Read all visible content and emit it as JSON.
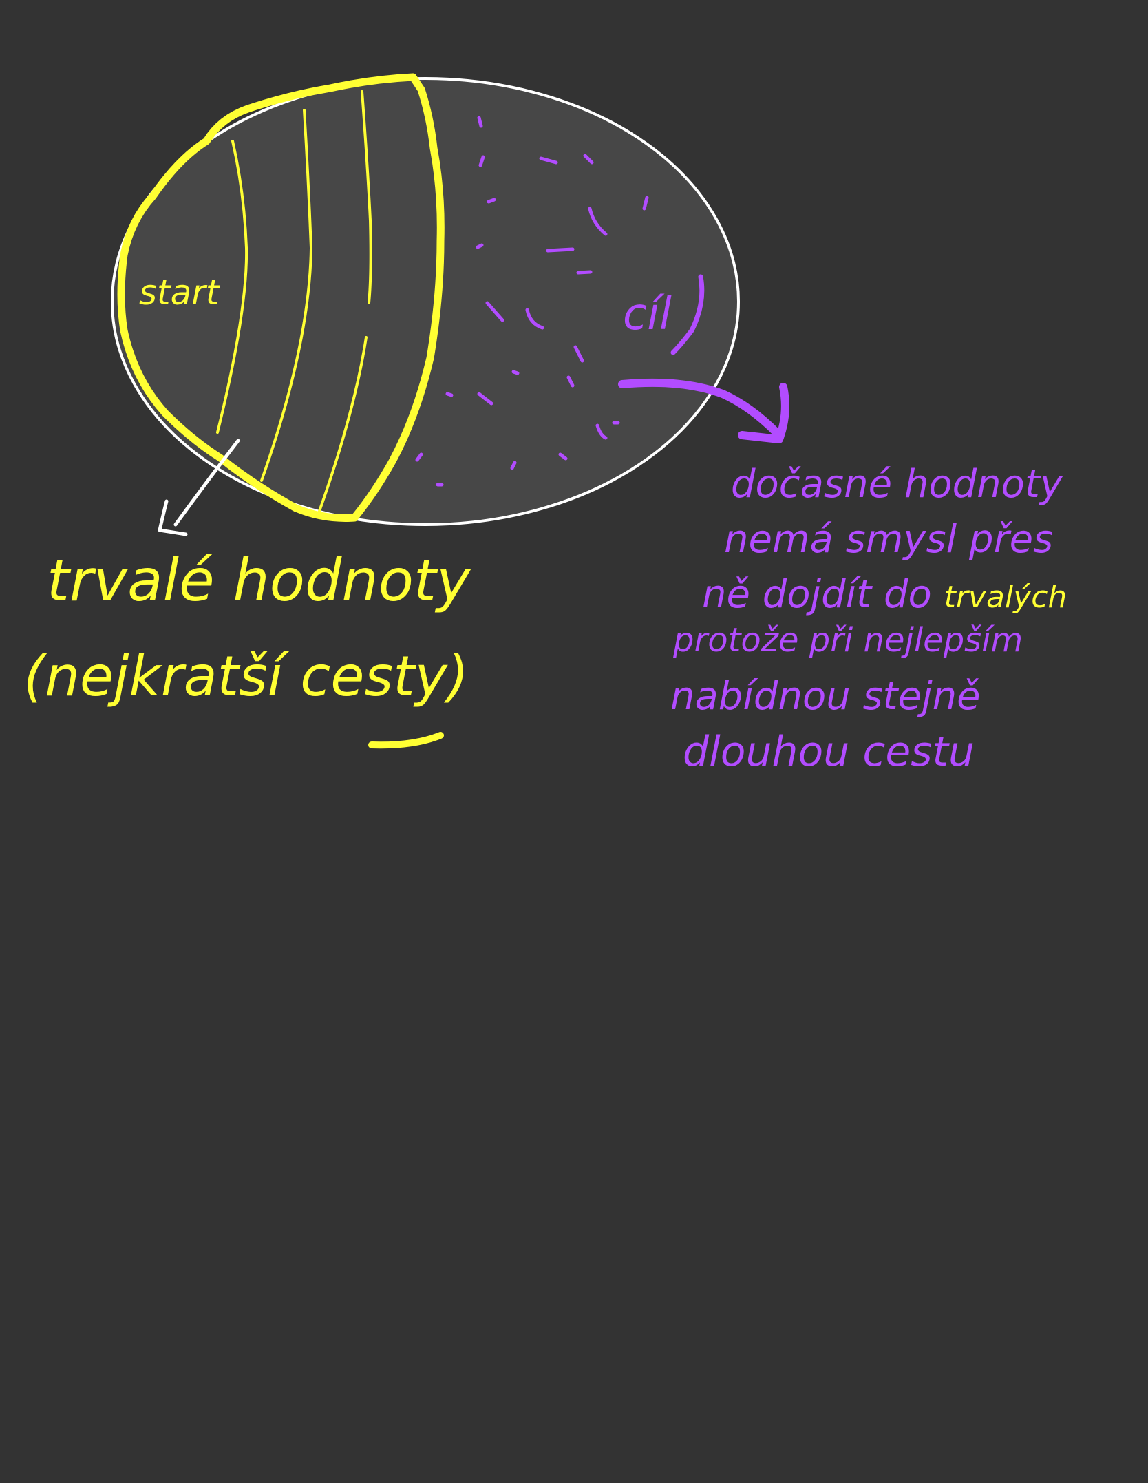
{
  "colors": {
    "background": "#333333",
    "region_fill": "#474747",
    "region_outline": "#ffffff",
    "permanent": "#ffff33",
    "temporary": "#b24cff",
    "pointer_arrow": "#ffffff"
  },
  "labels": {
    "start": "start",
    "goal": "cíl"
  },
  "permanent_note": {
    "line1": "trvalé hodnoty",
    "line2": "(nejkratší cesty)"
  },
  "temporary_note": {
    "line1": "dočasné hodnoty",
    "line2": "nemá smysl přes",
    "line3a": "ně dojdít do ",
    "line3b": "trvalých",
    "line4": "protože při nejlepším",
    "line5": "nabídnou stejně",
    "line6": "dlouhou cestu"
  }
}
